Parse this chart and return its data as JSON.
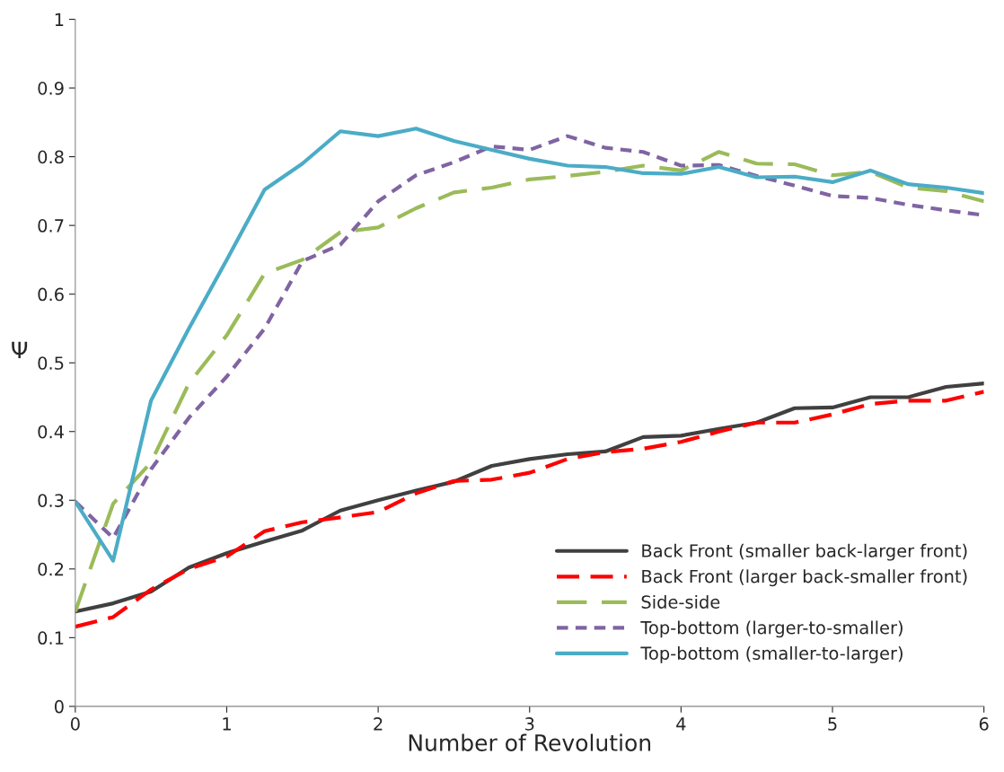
{
  "chart_data": {
    "type": "line",
    "xlabel": "Number of Revolution",
    "ylabel": "Ψ",
    "x": [
      0,
      0.25,
      0.5,
      0.75,
      1,
      1.25,
      1.5,
      1.75,
      2,
      2.25,
      2.5,
      2.75,
      3,
      3.25,
      3.5,
      3.75,
      4,
      4.25,
      4.5,
      4.75,
      5,
      5.25,
      5.5,
      5.75,
      6
    ],
    "series": [
      {
        "name": "Back Front (smaller back-larger front)",
        "color": "#404040",
        "line_style": "solid",
        "values": [
          0.138,
          0.15,
          0.167,
          0.202,
          0.223,
          0.24,
          0.256,
          0.285,
          0.3,
          0.314,
          0.327,
          0.35,
          0.36,
          0.367,
          0.371,
          0.392,
          0.394,
          0.404,
          0.413,
          0.434,
          0.435,
          0.45,
          0.45,
          0.465,
          0.47
        ]
      },
      {
        "name": "Back Front (larger back-smaller front)",
        "color": "#ff0000",
        "line_style": "dashed",
        "values": [
          0.116,
          0.13,
          0.17,
          0.2,
          0.218,
          0.255,
          0.268,
          0.275,
          0.283,
          0.31,
          0.328,
          0.33,
          0.34,
          0.36,
          0.37,
          0.375,
          0.385,
          0.4,
          0.413,
          0.413,
          0.425,
          0.44,
          0.445,
          0.445,
          0.458
        ]
      },
      {
        "name": "Side-side",
        "color": "#9bbb59",
        "line_style": "dashed",
        "values": [
          0.138,
          0.295,
          0.355,
          0.47,
          0.54,
          0.63,
          0.65,
          0.69,
          0.697,
          0.725,
          0.748,
          0.755,
          0.767,
          0.772,
          0.778,
          0.787,
          0.78,
          0.807,
          0.79,
          0.789,
          0.773,
          0.778,
          0.755,
          0.75,
          0.735
        ]
      },
      {
        "name": "Top-bottom (larger-to-smaller)",
        "color": "#8064a2",
        "line_style": "dashed",
        "values": [
          0.298,
          0.245,
          0.345,
          0.42,
          0.48,
          0.55,
          0.648,
          0.672,
          0.735,
          0.773,
          0.792,
          0.815,
          0.81,
          0.83,
          0.813,
          0.807,
          0.787,
          0.788,
          0.772,
          0.758,
          0.743,
          0.74,
          0.73,
          0.722,
          0.715
        ]
      },
      {
        "name": "Top-bottom (smaller-to-larger)",
        "color": "#4bacc6",
        "line_style": "solid",
        "values": [
          0.298,
          0.212,
          0.445,
          0.55,
          0.65,
          0.752,
          0.79,
          0.837,
          0.83,
          0.841,
          0.823,
          0.81,
          0.797,
          0.787,
          0.785,
          0.776,
          0.775,
          0.785,
          0.77,
          0.771,
          0.763,
          0.78,
          0.76,
          0.755,
          0.747
        ]
      }
    ],
    "xlim": [
      0,
      6
    ],
    "ylim": [
      0,
      1
    ],
    "xticks": [
      0,
      1,
      2,
      3,
      4,
      5,
      6
    ],
    "yticks": [
      0,
      0.1,
      0.2,
      0.3,
      0.4,
      0.5,
      0.6,
      0.7,
      0.8,
      0.9,
      1
    ],
    "grid": false,
    "legend": "bottom right",
    "marker": "none"
  }
}
